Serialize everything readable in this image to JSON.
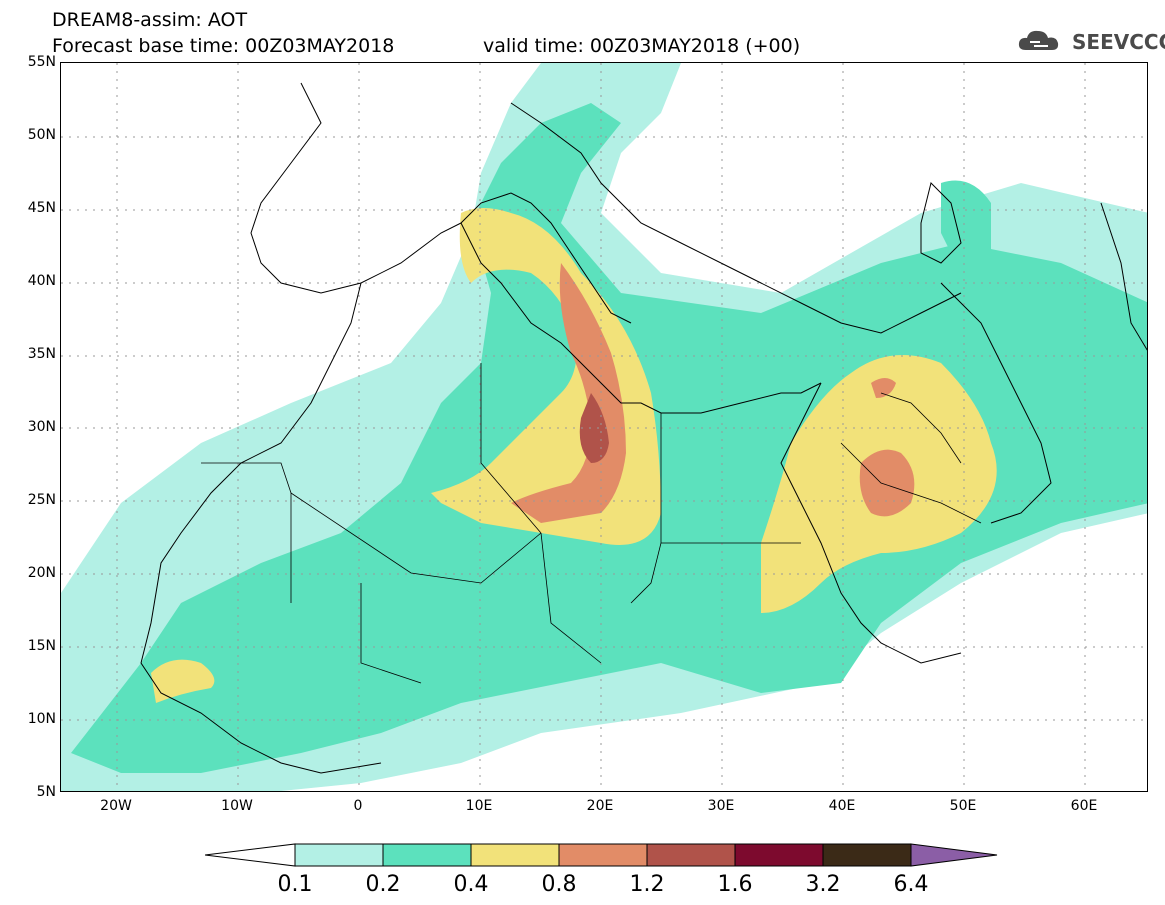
{
  "header": {
    "line1": "DREAM8-assim: AOT",
    "line2": "Forecast base time: 00Z03MAY2018",
    "line3": "valid time: 00Z03MAY2018 (+00)"
  },
  "logo": {
    "text": "SEEVCCC",
    "icon": "cloud-icon"
  },
  "axes": {
    "lat_labels": [
      "55N",
      "50N",
      "45N",
      "40N",
      "35N",
      "30N",
      "25N",
      "20N",
      "15N",
      "10N",
      "5N"
    ],
    "lon_labels": [
      "20W",
      "10W",
      "0",
      "10E",
      "20E",
      "30E",
      "40E",
      "50E",
      "60E"
    ]
  },
  "colorbar": {
    "labels": [
      "0.1",
      "0.2",
      "0.4",
      "0.8",
      "1.2",
      "1.6",
      "3.2",
      "6.4"
    ],
    "colors": [
      "#ffffff",
      "#b3f0e5",
      "#5ce1bd",
      "#f2e27a",
      "#e28c67",
      "#b0534a",
      "#7d0a2e",
      "#3b2a17",
      "#8b5ea6"
    ]
  }
}
